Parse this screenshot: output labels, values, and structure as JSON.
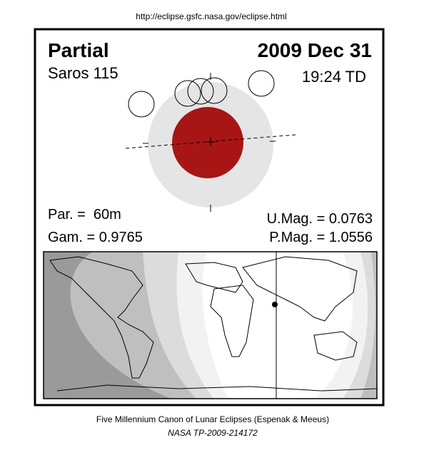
{
  "header": {
    "url": "http://eclipse.gsfc.nasa.gov/eclipse.html"
  },
  "panel": {
    "eclipse_type": "Partial",
    "date": "2009 Dec 31",
    "saros": "Saros 115",
    "time": "19:24 TD",
    "parameters": {
      "par": "Par. =  60m",
      "gam": "Gam. = 0.9765",
      "umag": "U.Mag. = 0.0763",
      "pmag": "P.Mag. = 1.0556"
    }
  },
  "footer": {
    "source": "Five Millennium Canon of Lunar Eclipses (Espenak & Meeus)",
    "publication": "NASA TP-2009-214172"
  }
}
